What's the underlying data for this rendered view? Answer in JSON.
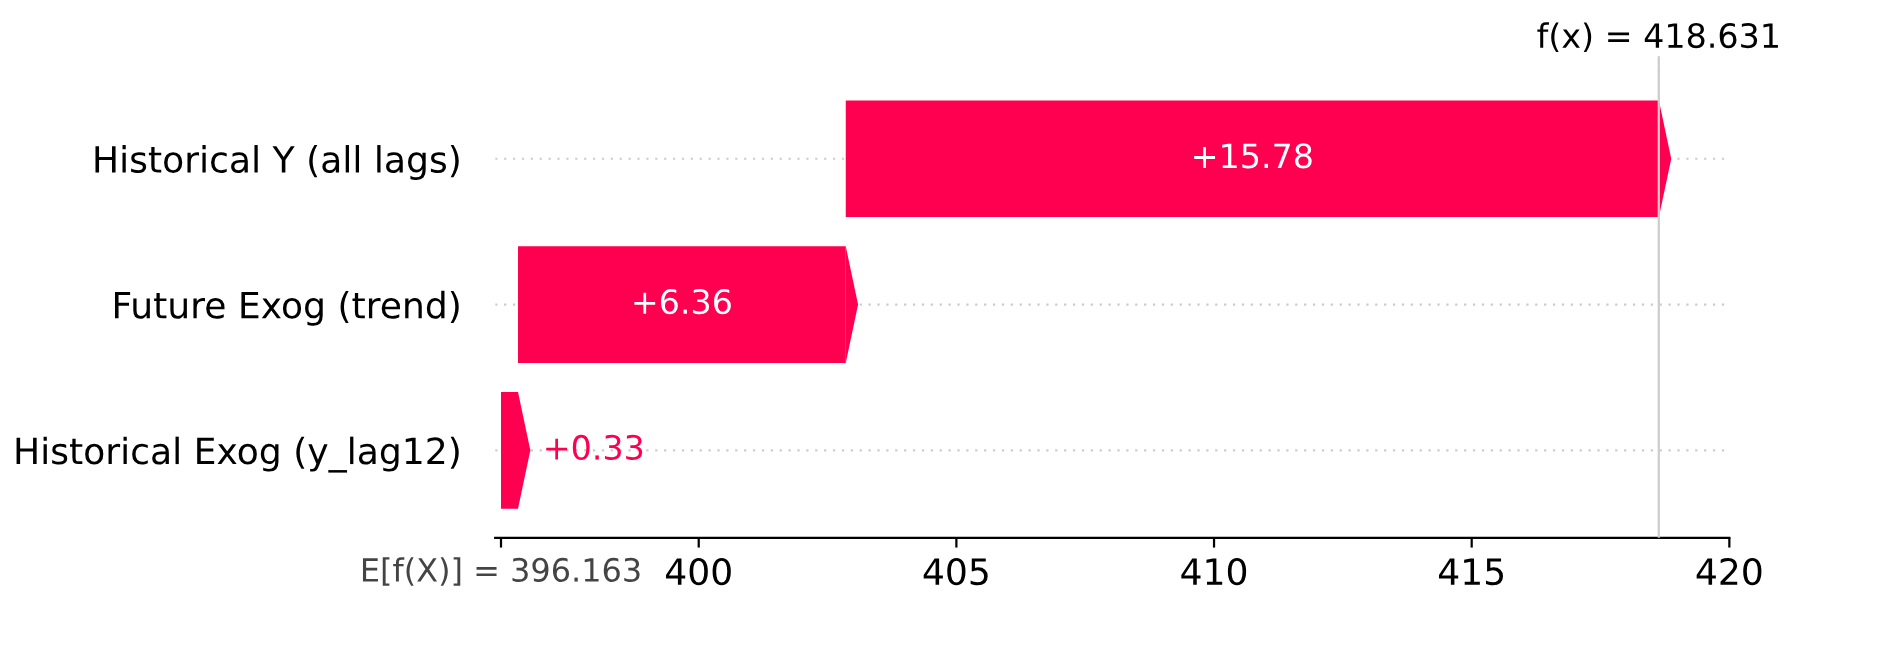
{
  "chart_data": {
    "type": "bar",
    "orientation": "horizontal",
    "categories": [
      "Historical Y (all lags)",
      "Future Exog (trend)",
      "Historical Exog (y_lag12)"
    ],
    "values": [
      15.78,
      6.36,
      0.33
    ],
    "base": [
      402.853,
      396.493,
      396.163
    ],
    "value_labels": [
      "+15.78",
      "+6.36",
      "+0.33"
    ],
    "color": "#ff0051",
    "xlim": [
      396.05,
      420
    ],
    "xticks": [
      {
        "value": 396.163,
        "label": "E[f(X)] = 396.163"
      },
      400,
      405,
      410,
      415,
      420
    ],
    "ref_lines": [
      {
        "axis": "x",
        "value": 418.631,
        "label": "f(x) = 418.631",
        "color": "#cccccc",
        "line_style": "solid"
      }
    ],
    "grid": "y"
  }
}
